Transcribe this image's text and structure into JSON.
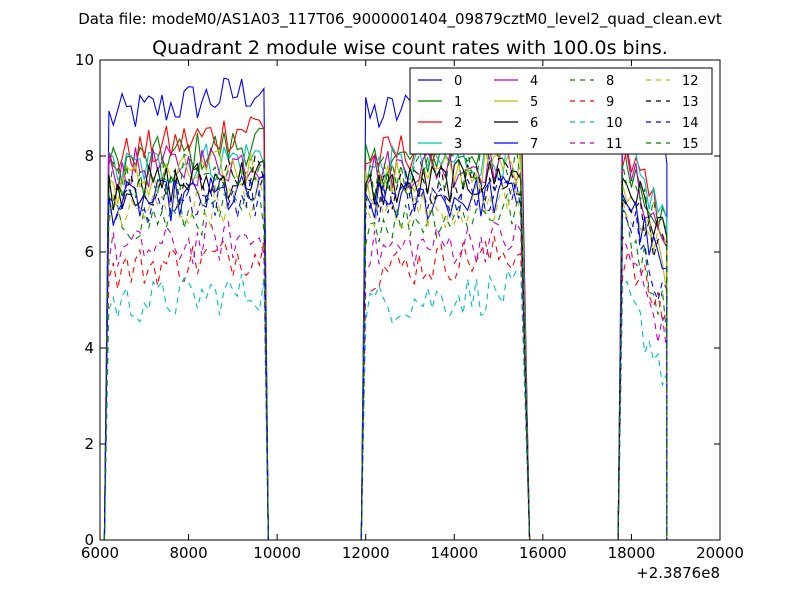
{
  "chart_data": {
    "type": "line",
    "suptitle": "Data file: modeM0/AS1A03_117T06_9000001404_09879cztM0_level2_quad_clean.evt",
    "title": "Quadrant 2 module wise count rates with 100.0s bins.",
    "xlabel": "",
    "ylabel": "",
    "x_offset_label": "+2.3876e8",
    "xlim": [
      6000,
      20000
    ],
    "ylim": [
      0,
      10
    ],
    "x_ticks": [
      6000,
      8000,
      10000,
      12000,
      14000,
      16000,
      18000,
      20000
    ],
    "y_ticks": [
      0,
      2,
      4,
      6,
      8,
      10
    ],
    "grid": false,
    "legend_position": "top-right",
    "legend_columns": 4,
    "segments": [
      {
        "start": 6200,
        "end": 9700,
        "drop_to": 9800
      },
      {
        "start": 12000,
        "end": 15550,
        "drop_to": 15700
      },
      {
        "start": 17800,
        "end": 18800,
        "drop_to": 18800
      }
    ],
    "gap_value": 0,
    "series": [
      {
        "name": "0",
        "color": "#0000ff",
        "dash": "solid",
        "level": 8.8,
        "ramp": 0.6
      },
      {
        "name": "1",
        "color": "#008000",
        "dash": "solid",
        "level": 7.8,
        "ramp": 0.5
      },
      {
        "name": "2",
        "color": "#ff0000",
        "dash": "solid",
        "level": 7.9,
        "ramp": 0.8
      },
      {
        "name": "3",
        "color": "#00bfbf",
        "dash": "solid",
        "level": 7.7,
        "ramp": 0.3
      },
      {
        "name": "4",
        "color": "#bf00bf",
        "dash": "solid",
        "level": 7.7,
        "ramp": 0.2
      },
      {
        "name": "5",
        "color": "#bfbf00",
        "dash": "solid",
        "level": 7.4,
        "ramp": 0.4
      },
      {
        "name": "6",
        "color": "#000000",
        "dash": "solid",
        "level": 7.3,
        "ramp": 0.3
      },
      {
        "name": "7",
        "color": "#0000ff",
        "dash": "solid",
        "level": 7.0,
        "ramp": 0.2
      },
      {
        "name": "8",
        "color": "#008000",
        "dash": "dashed",
        "level": 6.6,
        "ramp": 0.3
      },
      {
        "name": "9",
        "color": "#ff0000",
        "dash": "dashed",
        "level": 5.6,
        "ramp": 0.4
      },
      {
        "name": "10",
        "color": "#00bfbf",
        "dash": "dashed",
        "level": 4.9,
        "ramp": 0.3
      },
      {
        "name": "11",
        "color": "#bf00bf",
        "dash": "dashed",
        "level": 6.0,
        "ramp": 0.3
      },
      {
        "name": "12",
        "color": "#bfbf00",
        "dash": "dashed",
        "level": 6.8,
        "ramp": 0.3
      },
      {
        "name": "13",
        "color": "#000000",
        "dash": "dashed",
        "level": 7.2,
        "ramp": 0.4
      },
      {
        "name": "14",
        "color": "#0000ff",
        "dash": "dashed",
        "level": 7.0,
        "ramp": 0.2
      },
      {
        "name": "15",
        "color": "#008000",
        "dash": "dashed",
        "level": 7.5,
        "ramp": 0.3
      }
    ]
  }
}
